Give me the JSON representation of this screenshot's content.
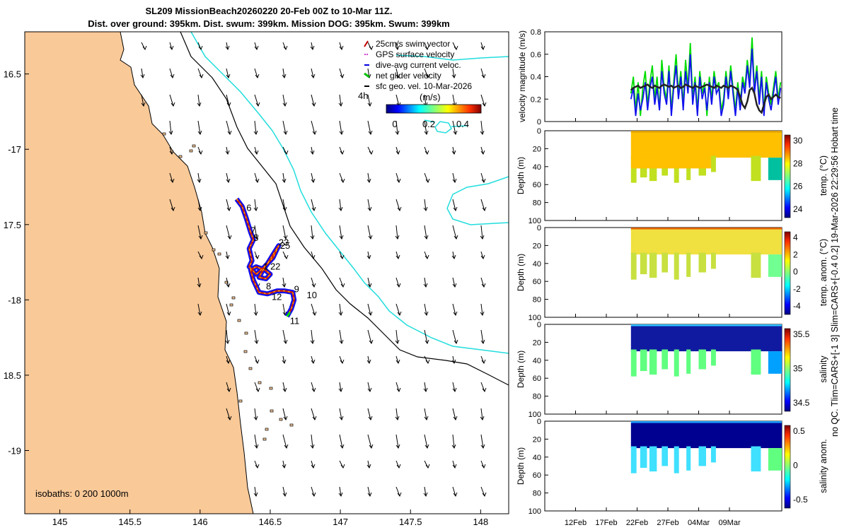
{
  "title": {
    "line1": "SL209 MissionBeach20260220 20-Feb 00Z to 10-Mar 11Z.",
    "line2": "Dist. over ground: 395km. Dist. swum: 399km. Mission DOG: 395km. Swum: 399km"
  },
  "side_label": "no QC. Tlim=CARS+[-1 3] Slim=CARS+[-0.4 0.2] 19-Mar-2026 22:29:56 Hobart time",
  "chart_data": [
    {
      "type": "scatter",
      "name": "map",
      "xlim": [
        144.75,
        148.2
      ],
      "ylim": [
        -19.42,
        -16.22
      ],
      "xticks": [
        145,
        145.5,
        146,
        146.5,
        147,
        147.5,
        148
      ],
      "xtick_labels": [
        "145",
        "145.5",
        "146",
        "146.5",
        "147",
        "147.5",
        "148"
      ],
      "yticks": [
        -16.5,
        -17,
        -17.5,
        -18,
        -18.5,
        -19
      ],
      "ytick_labels": [
        "16.5",
        "-17",
        "17.5",
        "-18",
        "18.5",
        "-19"
      ],
      "isobaths_label": "isobaths: 0   200  1000m",
      "legend": [
        {
          "label": "25cm/s swim vector",
          "color": "#c00000"
        },
        {
          "label": "GPS surface velocity",
          "color": "#d040d0"
        },
        {
          "label": "dive-avg current veloc.",
          "color": "#0000e0"
        },
        {
          "label": "net glider velocity",
          "color": "#00c000"
        },
        {
          "label": "sfc geo. vel. 10-Mar-2026",
          "color": "#000000"
        }
      ],
      "interval_label": "4h",
      "colorbar": {
        "label": "(m/s)",
        "ticks": [
          "0",
          "0.2",
          "0.4"
        ],
        "range": [
          -0.05,
          0.45
        ]
      },
      "track": [
        [
          146.26,
          -17.33
        ],
        [
          146.3,
          -17.38
        ],
        [
          146.33,
          -17.46
        ],
        [
          146.36,
          -17.55
        ],
        [
          146.38,
          -17.6
        ],
        [
          146.35,
          -17.66
        ],
        [
          146.37,
          -17.74
        ],
        [
          146.35,
          -17.78
        ],
        [
          146.4,
          -17.83
        ],
        [
          146.46,
          -17.78
        ],
        [
          146.52,
          -17.72
        ],
        [
          146.56,
          -17.64
        ],
        [
          146.52,
          -17.7
        ],
        [
          146.48,
          -17.76
        ],
        [
          146.45,
          -17.8
        ],
        [
          146.42,
          -17.85
        ],
        [
          146.47,
          -17.86
        ],
        [
          146.5,
          -17.83
        ],
        [
          146.46,
          -17.8
        ],
        [
          146.4,
          -17.78
        ],
        [
          146.36,
          -17.8
        ],
        [
          146.38,
          -17.87
        ],
        [
          146.42,
          -17.95
        ],
        [
          146.48,
          -17.96
        ],
        [
          146.55,
          -17.94
        ],
        [
          146.6,
          -17.94
        ],
        [
          146.66,
          -17.95
        ],
        [
          146.67,
          -18.0
        ],
        [
          146.65,
          -18.06
        ],
        [
          146.62,
          -18.11
        ]
      ],
      "waypoints": [
        {
          "label": "6",
          "lon": 146.33,
          "lat": -17.41
        },
        {
          "label": "7",
          "lon": 146.36,
          "lat": -17.56
        },
        {
          "label": "5",
          "lon": 146.38,
          "lat": -17.61
        },
        {
          "label": "23",
          "lon": 146.56,
          "lat": -17.64
        },
        {
          "label": "25",
          "lon": 146.57,
          "lat": -17.66
        },
        {
          "label": "1",
          "lon": 146.45,
          "lat": -17.8
        },
        {
          "label": "22",
          "lon": 146.5,
          "lat": -17.8
        },
        {
          "label": "8",
          "lon": 146.47,
          "lat": -17.93
        },
        {
          "label": "12",
          "lon": 146.51,
          "lat": -18.0
        },
        {
          "label": "9",
          "lon": 146.67,
          "lat": -17.95
        },
        {
          "label": "10",
          "lon": 146.76,
          "lat": -17.99
        },
        {
          "label": "11",
          "lon": 146.64,
          "lat": -18.16
        }
      ]
    },
    {
      "type": "line",
      "name": "velocity",
      "ylabel": "velocity magnitude (m/s)",
      "ylim": [
        0,
        0.8
      ],
      "yticks": [
        "0",
        "0.2",
        "0.4",
        "0.6",
        "0.8"
      ],
      "xlim_days": [
        0,
        38.5
      ],
      "xtick_labels": [
        "12Feb",
        "17Feb",
        "22Feb",
        "27Feb",
        "04Mar",
        "09Mar"
      ],
      "xtick_days": [
        5,
        10,
        15,
        20,
        25,
        30
      ],
      "series": [
        {
          "name": "net glider velocity",
          "color": "#00dd00",
          "values": [
            0.25,
            0.4,
            0.1,
            0.35,
            0.05,
            0.3,
            0.45,
            0.15,
            0.35,
            0.5,
            0.2,
            0.4,
            0.1,
            0.55,
            0.3,
            0.2,
            0.5,
            0.1,
            0.35,
            0.6,
            0.25,
            0.45,
            0.15,
            0.55,
            0.3,
            0.7,
            0.2,
            0.4,
            0.1,
            0.45,
            0.25,
            0.35,
            0.05,
            0.4,
            0.2,
            0.45,
            0.3,
            0.35,
            0.1,
            0.2,
            0.45,
            0.25,
            0.5,
            0.3,
            0.1,
            0.35,
            0.15,
            0.4,
            0.3,
            0.55,
            0.35,
            0.75,
            0.3,
            0.5,
            0.2,
            0.45,
            0.1,
            0.4,
            0.25,
            0.15,
            0.3,
            0.45,
            0.2,
            0.35
          ]
        },
        {
          "name": "dive-avg current veloc.",
          "color": "#1111ee",
          "values": [
            0.2,
            0.3,
            0.05,
            0.25,
            0.1,
            0.2,
            0.35,
            0.1,
            0.3,
            0.4,
            0.15,
            0.3,
            0.1,
            0.45,
            0.25,
            0.15,
            0.45,
            0.05,
            0.3,
            0.5,
            0.2,
            0.4,
            0.1,
            0.45,
            0.25,
            0.6,
            0.15,
            0.35,
            0.05,
            0.4,
            0.2,
            0.3,
            0.1,
            0.35,
            0.15,
            0.4,
            0.25,
            0.3,
            0.05,
            0.15,
            0.4,
            0.2,
            0.45,
            0.25,
            0.05,
            0.3,
            0.1,
            0.35,
            0.25,
            0.5,
            0.3,
            0.65,
            0.25,
            0.45,
            0.15,
            0.4,
            0.05,
            0.35,
            0.2,
            0.1,
            0.25,
            0.4,
            0.15,
            0.3
          ]
        },
        {
          "name": "sfc geo. vel.",
          "color": "#222222",
          "values": [
            0.28,
            0.3,
            0.31,
            0.32,
            0.3,
            0.31,
            0.32,
            0.33,
            0.31,
            0.3,
            0.32,
            0.31,
            0.3,
            0.32,
            0.33,
            0.32,
            0.31,
            0.32,
            0.3,
            0.31,
            0.32,
            0.3,
            0.31,
            0.33,
            0.32,
            0.31,
            0.3,
            0.32,
            0.31,
            0.3,
            0.31,
            0.32,
            0.33,
            0.32,
            0.31,
            0.3,
            0.32,
            0.31,
            0.3,
            0.32,
            0.31,
            0.3,
            0.32,
            0.31,
            0.3,
            0.28,
            0.22,
            0.15,
            0.12,
            0.18,
            0.28,
            0.3,
            0.25,
            0.15,
            0.1,
            0.08,
            0.15,
            0.22,
            0.24,
            0.2,
            0.22,
            0.24,
            0.22,
            0.21
          ]
        }
      ]
    },
    {
      "type": "heatmap",
      "name": "temperature",
      "ylabel": "Depth (m)",
      "cbar_label": "temp. (°C)",
      "cbar_ticks": [
        "30",
        "28",
        "26",
        "24"
      ],
      "yticks": [
        "0",
        "20",
        "40",
        "60",
        "80",
        "100"
      ],
      "xtick_labels": [
        "12Feb",
        "17Feb",
        "22Feb",
        "27Feb",
        "04Mar",
        "09Mar"
      ],
      "colormap": "jet"
    },
    {
      "type": "heatmap",
      "name": "temperature anomaly",
      "ylabel": "Depth (m)",
      "cbar_label": "temp. anom. (°C)",
      "cbar_ticks": [
        "4",
        "2",
        "0",
        "-2",
        "-4"
      ],
      "yticks": [
        "0",
        "20",
        "40",
        "60",
        "80",
        "100"
      ],
      "xtick_labels": [
        "12Feb",
        "17Feb",
        "22Feb",
        "27Feb",
        "04Mar",
        "09Mar"
      ],
      "colormap": "jet"
    },
    {
      "type": "heatmap",
      "name": "salinity",
      "ylabel": "Depth (m)",
      "cbar_label": "salinity",
      "cbar_ticks": [
        "35.5",
        "35",
        "34.5"
      ],
      "yticks": [
        "0",
        "20",
        "40",
        "60",
        "80",
        "100"
      ],
      "xtick_labels": [
        "12Feb",
        "17Feb",
        "22Feb",
        "27Feb",
        "04Mar",
        "09Mar"
      ],
      "colormap": "jet"
    },
    {
      "type": "heatmap",
      "name": "salinity anomaly",
      "ylabel": "Depth (m)",
      "cbar_label": "salinity anom.",
      "cbar_ticks": [
        "0.5",
        "0",
        "-0.5"
      ],
      "yticks": [
        "0",
        "20",
        "40",
        "60",
        "80",
        "100"
      ],
      "xtick_labels": [
        "12Feb",
        "17Feb",
        "22Feb",
        "27Feb",
        "04Mar",
        "09Mar"
      ],
      "colormap": "jet"
    }
  ]
}
